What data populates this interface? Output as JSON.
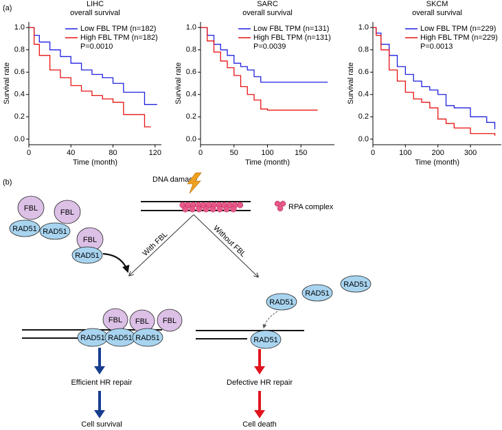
{
  "panel_a": "(a)",
  "chart_data": [
    {
      "type": "line",
      "title": "LIHC",
      "subtitle": "overall survival",
      "x_label": "Time (month)",
      "y_label": "Survival rate",
      "annotation": "P=0.0010",
      "legend": "top right",
      "xlim": [
        0,
        126
      ],
      "ylim": [
        -0.05,
        1.05
      ],
      "xticks": [
        0,
        40,
        80,
        120
      ],
      "yticks": [
        {
          "value": 0,
          "label": "0.0"
        },
        0.2,
        0.4,
        0.6,
        0.8,
        {
          "value": 1,
          "label": "1.0"
        }
      ],
      "series": [
        {
          "name": "Low FBL TPM (n=182)",
          "color": "#1f1fe0",
          "x": [
            0,
            5,
            10,
            20,
            30,
            40,
            50,
            60,
            70,
            80,
            90,
            100,
            110,
            122
          ],
          "values": [
            1,
            0.93,
            0.87,
            0.8,
            0.74,
            0.68,
            0.62,
            0.58,
            0.55,
            0.5,
            0.42,
            0.42,
            0.31,
            0.31
          ]
        },
        {
          "name": "High FBL TPM (n=182)",
          "color": "#e81010",
          "x": [
            0,
            5,
            10,
            20,
            30,
            40,
            50,
            60,
            70,
            80,
            90,
            100,
            110,
            116
          ],
          "values": [
            1,
            0.85,
            0.75,
            0.62,
            0.55,
            0.48,
            0.43,
            0.39,
            0.36,
            0.33,
            0.22,
            0.22,
            0.11,
            0.11
          ]
        }
      ]
    },
    {
      "type": "line",
      "title": "SARC",
      "subtitle": "overall survival",
      "x_label": "Time (month)",
      "y_label": "Survival rate",
      "annotation": "P=0.0039",
      "legend": "top right",
      "xlim": [
        0,
        200
      ],
      "ylim": [
        -0.05,
        1.05
      ],
      "xticks": [
        0,
        50,
        100,
        150
      ],
      "yticks": [
        {
          "value": 0,
          "label": "0.0"
        },
        0.2,
        0.4,
        0.6,
        0.8,
        {
          "value": 1,
          "label": "1.0"
        }
      ],
      "series": [
        {
          "name": "Low FBL TPM (n=131)",
          "color": "#1f1fe0",
          "x": [
            0,
            10,
            20,
            30,
            40,
            50,
            60,
            70,
            80,
            90,
            100,
            150,
            190
          ],
          "values": [
            1,
            0.93,
            0.85,
            0.8,
            0.75,
            0.68,
            0.65,
            0.62,
            0.56,
            0.51,
            0.51,
            0.51,
            0.51
          ]
        },
        {
          "name": "High FBL TPM (n=131)",
          "color": "#e81010",
          "x": [
            0,
            10,
            20,
            30,
            40,
            50,
            60,
            70,
            80,
            90,
            100,
            150,
            175
          ],
          "values": [
            1,
            0.88,
            0.78,
            0.7,
            0.64,
            0.57,
            0.47,
            0.4,
            0.35,
            0.27,
            0.26,
            0.26,
            0.26
          ]
        }
      ]
    },
    {
      "type": "line",
      "title": "SKCM",
      "subtitle": "overall survival",
      "x_label": "Time (month)",
      "y_label": "Survival rate",
      "annotation": "P=0.0013",
      "legend": "top right",
      "xlim": [
        0,
        395
      ],
      "ylim": [
        -0.05,
        1.05
      ],
      "xticks": [
        0,
        100,
        200,
        300
      ],
      "yticks": [
        {
          "value": 0,
          "label": "0.0"
        },
        0.2,
        0.4,
        0.6,
        0.8,
        {
          "value": 1,
          "label": "1.0"
        }
      ],
      "series": [
        {
          "name": "Low FBL TPM (n=229)",
          "color": "#1f1fe0",
          "x": [
            0,
            10,
            25,
            50,
            75,
            100,
            125,
            150,
            175,
            200,
            225,
            250,
            300,
            350,
            375
          ],
          "values": [
            1,
            0.95,
            0.85,
            0.75,
            0.65,
            0.58,
            0.52,
            0.47,
            0.44,
            0.4,
            0.3,
            0.28,
            0.2,
            0.15,
            0.09
          ]
        },
        {
          "name": "High FBL TPM (n=229)",
          "color": "#e81010",
          "x": [
            0,
            10,
            25,
            50,
            75,
            100,
            125,
            150,
            175,
            200,
            225,
            250,
            300,
            350,
            375
          ],
          "values": [
            1,
            0.93,
            0.8,
            0.62,
            0.52,
            0.42,
            0.36,
            0.33,
            0.28,
            0.18,
            0.14,
            0.1,
            0.05,
            0.05,
            0.03
          ]
        }
      ]
    }
  ],
  "diagram": {
    "panel_label": "(b)",
    "dna_damage": "DNA damage",
    "rpa_legend": "RPA complex",
    "left_branch": "With FBL",
    "right_branch": "Without FBL",
    "left_free": [
      {
        "fbl": "FBL",
        "rad51": "RAD51"
      },
      {
        "fbl": "FBL",
        "rad51": "RAD51"
      },
      {
        "fbl": "FBL",
        "rad51": "RAD51"
      }
    ],
    "left_bound": [
      {
        "fbl": "FBL",
        "rad51": "RAD51"
      },
      {
        "fbl": "FBL",
        "rad51": "RAD51"
      },
      {
        "fbl": "FBL",
        "rad51": "RAD51"
      }
    ],
    "right_free": [
      "RAD51",
      "RAD51",
      "RAD51"
    ],
    "right_bound": "RAD51",
    "left_outcome": [
      "Efficient HR repair",
      "Cell survival"
    ],
    "right_outcome": [
      "Defective HR repair",
      "Cell death"
    ]
  }
}
